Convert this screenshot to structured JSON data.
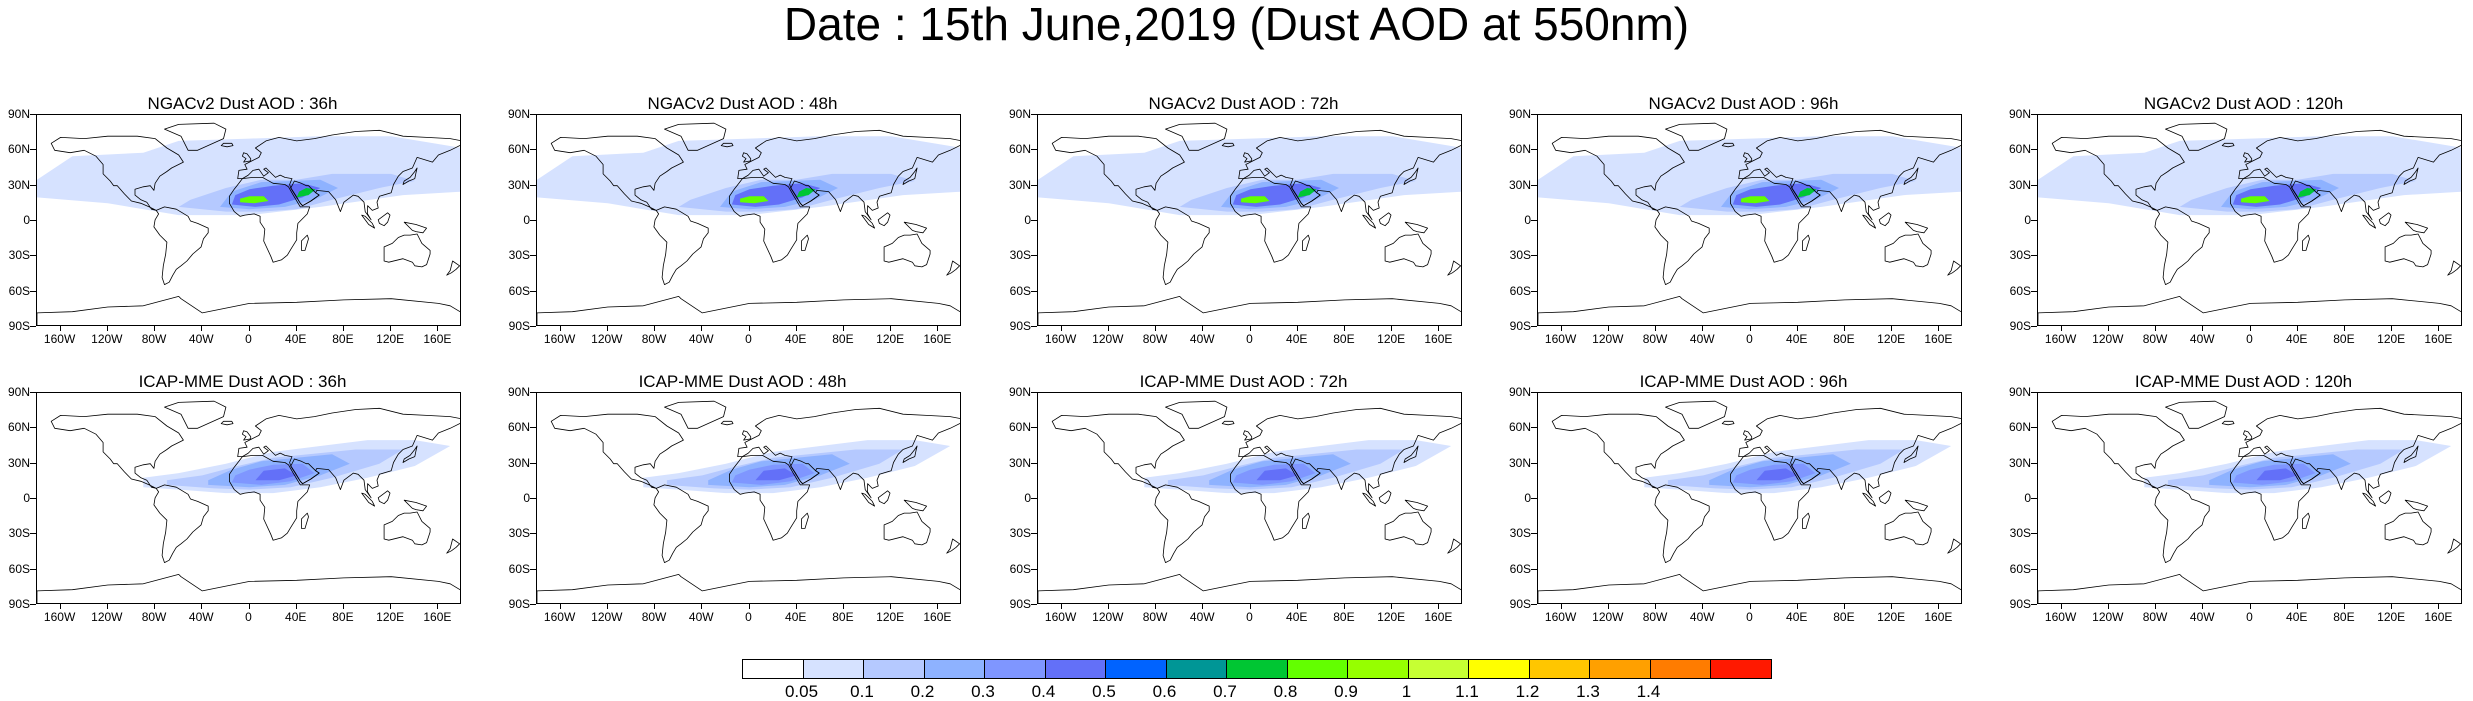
{
  "title": "Date : 15th June,2019 (Dust AOD at 550nm)",
  "map_axes": {
    "lat_labels": [
      "90N",
      "60N",
      "30N",
      "0",
      "30S",
      "60S",
      "90S"
    ],
    "lon_labels": [
      "160W",
      "120W",
      "80W",
      "40W",
      "0",
      "40E",
      "80E",
      "120E",
      "160E"
    ]
  },
  "rows": [
    {
      "model": "NGACv2",
      "panels": [
        {
          "title": "NGACv2 Dust AOD : 36h",
          "lead_time": "36h"
        },
        {
          "title": "NGACv2 Dust AOD : 48h",
          "lead_time": "48h"
        },
        {
          "title": "NGACv2 Dust AOD : 72h",
          "lead_time": "72h"
        },
        {
          "title": "NGACv2 Dust AOD : 96h",
          "lead_time": "96h"
        },
        {
          "title": "NGACv2 Dust AOD : 120h",
          "lead_time": "120h"
        }
      ]
    },
    {
      "model": "ICAP-MME",
      "panels": [
        {
          "title": "ICAP-MME Dust AOD : 36h",
          "lead_time": "36h"
        },
        {
          "title": "ICAP-MME Dust AOD : 48h",
          "lead_time": "48h"
        },
        {
          "title": "ICAP-MME Dust AOD : 72h",
          "lead_time": "72h"
        },
        {
          "title": "ICAP-MME Dust AOD : 96h",
          "lead_time": "96h"
        },
        {
          "title": "ICAP-MME Dust AOD : 120h",
          "lead_time": "120h"
        }
      ]
    }
  ],
  "colorbar": {
    "labels": [
      "0.05",
      "0.1",
      "0.2",
      "0.3",
      "0.4",
      "0.5",
      "0.6",
      "0.7",
      "0.8",
      "0.9",
      "1",
      "1.1",
      "1.2",
      "1.3",
      "1.4"
    ],
    "colors": [
      "#ffffff",
      "#d6e2ff",
      "#b5c9ff",
      "#8eb2ff",
      "#7f96ff",
      "#6370f8",
      "#0063ff",
      "#009696",
      "#00c633",
      "#63ff00",
      "#96ff00",
      "#c6ff33",
      "#ffff00",
      "#ffc600",
      "#ffa000",
      "#ff7c00",
      "#ff1900"
    ]
  },
  "map_colors": {
    "land_outline": "#000000",
    "ocean": "#ffffff"
  }
}
